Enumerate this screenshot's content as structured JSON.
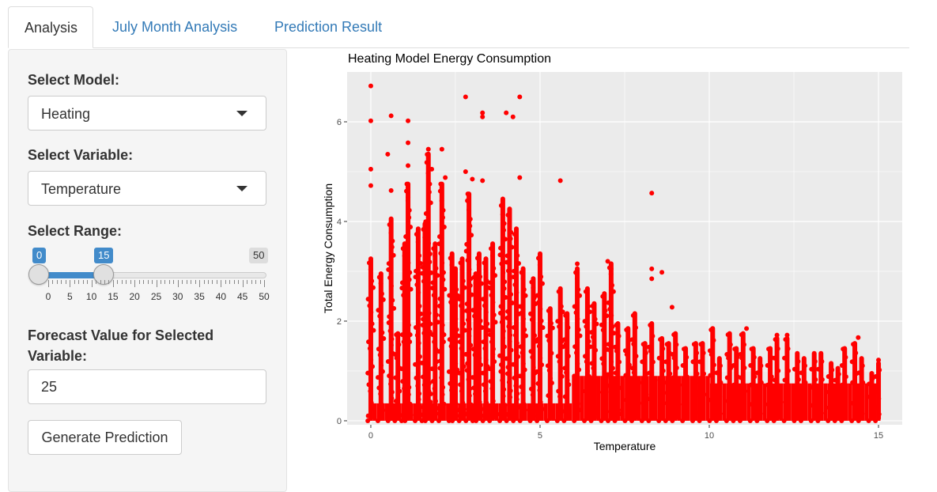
{
  "tabs": [
    {
      "label": "Analysis",
      "active": true
    },
    {
      "label": "July Month Analysis",
      "active": false
    },
    {
      "label": "Prediction Result",
      "active": false
    }
  ],
  "sidebar": {
    "model": {
      "label": "Select Model:",
      "value": "Heating"
    },
    "variable": {
      "label": "Select Variable:",
      "value": "Temperature"
    },
    "range": {
      "label": "Select Range:",
      "min": 0,
      "max": 50,
      "from": 0,
      "to": 15,
      "from_label": "0",
      "to_label": "15",
      "max_label": "50",
      "ticks": [
        "0",
        "5",
        "10",
        "15",
        "20",
        "25",
        "30",
        "35",
        "40",
        "45",
        "50"
      ]
    },
    "forecast": {
      "label": "Forecast Value for Selected Variable:",
      "value": "25"
    },
    "generate_button": "Generate Prediction"
  },
  "chart_data": {
    "type": "scatter",
    "title": "Heating Model Energy Consumption",
    "xlabel": "Temperature",
    "ylabel": "Total Energy Consumption",
    "xlim": [
      -0.7,
      15.7
    ],
    "ylim": [
      -0.08,
      7.0
    ],
    "x_ticks": [
      "0",
      "5",
      "10",
      "15"
    ],
    "y_ticks": [
      "0",
      "2",
      "4",
      "6"
    ],
    "point_color": "#ff0000",
    "panel_color": "#ebebeb",
    "grid": true,
    "series": [
      {
        "points": [
          [
            0.0,
            6.72
          ],
          [
            0.0,
            6.02
          ],
          [
            0.0,
            5.05
          ],
          [
            0.0,
            4.72
          ],
          [
            0.6,
            6.12
          ],
          [
            0.5,
            5.35
          ],
          [
            0.6,
            4.62
          ],
          [
            1.1,
            6.02
          ],
          [
            1.1,
            5.58
          ],
          [
            1.1,
            5.12
          ],
          [
            1.1,
            4.48
          ],
          [
            1.7,
            5.45
          ],
          [
            1.8,
            5.05
          ],
          [
            2.1,
            5.45
          ],
          [
            2.2,
            4.88
          ],
          [
            2.8,
            6.5
          ],
          [
            2.8,
            5.0
          ],
          [
            3.0,
            4.85
          ],
          [
            3.3,
            6.18
          ],
          [
            3.3,
            6.1
          ],
          [
            3.3,
            4.82
          ],
          [
            4.0,
            6.18
          ],
          [
            4.2,
            6.1
          ],
          [
            4.4,
            6.5
          ],
          [
            4.4,
            4.88
          ],
          [
            5.6,
            4.82
          ],
          [
            8.3,
            4.57
          ],
          [
            8.3,
            3.05
          ],
          [
            8.3,
            2.85
          ],
          [
            8.6,
            2.98
          ],
          [
            8.9,
            2.28
          ],
          [
            7.0,
            3.2
          ],
          [
            7.1,
            3.05
          ],
          [
            6.1,
            3.15
          ],
          [
            12.0,
            1.72
          ],
          [
            12.3,
            1.72
          ],
          [
            11.1,
            1.85
          ],
          [
            14.4,
            1.67
          ],
          [
            15.0,
            1.22
          ]
        ]
      }
    ],
    "dense_columns": [
      [
        0.0,
        3.3
      ],
      [
        0.3,
        3.0
      ],
      [
        0.6,
        4.1
      ],
      [
        0.8,
        1.8
      ],
      [
        1.0,
        3.6
      ],
      [
        1.1,
        4.8
      ],
      [
        1.4,
        3.9
      ],
      [
        1.6,
        4.0
      ],
      [
        1.7,
        5.4
      ],
      [
        1.9,
        3.6
      ],
      [
        2.1,
        4.8
      ],
      [
        2.4,
        3.4
      ],
      [
        2.5,
        3.1
      ],
      [
        2.7,
        3.3
      ],
      [
        2.9,
        4.6
      ],
      [
        3.1,
        3.0
      ],
      [
        3.2,
        3.4
      ],
      [
        3.4,
        3.3
      ],
      [
        3.6,
        3.6
      ],
      [
        3.9,
        4.5
      ],
      [
        4.1,
        4.3
      ],
      [
        4.3,
        3.9
      ],
      [
        4.5,
        3.1
      ],
      [
        4.8,
        2.9
      ],
      [
        5.0,
        3.4
      ],
      [
        5.3,
        2.3
      ],
      [
        5.6,
        2.7
      ],
      [
        5.8,
        2.2
      ],
      [
        6.1,
        3.1
      ],
      [
        6.4,
        2.7
      ],
      [
        6.6,
        2.4
      ],
      [
        6.9,
        2.6
      ],
      [
        7.1,
        3.2
      ],
      [
        7.3,
        2.0
      ],
      [
        7.6,
        1.9
      ],
      [
        7.8,
        2.2
      ],
      [
        8.1,
        1.6
      ],
      [
        8.3,
        2.0
      ],
      [
        8.6,
        1.7
      ],
      [
        8.8,
        1.6
      ],
      [
        9.0,
        1.8
      ],
      [
        9.3,
        1.5
      ],
      [
        9.6,
        1.6
      ],
      [
        9.8,
        1.6
      ],
      [
        10.1,
        1.9
      ],
      [
        10.3,
        1.3
      ],
      [
        10.6,
        1.8
      ],
      [
        10.8,
        1.5
      ],
      [
        11.0,
        1.8
      ],
      [
        11.3,
        1.5
      ],
      [
        11.5,
        1.3
      ],
      [
        11.8,
        1.5
      ],
      [
        12.0,
        1.7
      ],
      [
        12.3,
        1.7
      ],
      [
        12.6,
        1.4
      ],
      [
        12.8,
        1.3
      ],
      [
        13.1,
        1.4
      ],
      [
        13.3,
        1.4
      ],
      [
        13.6,
        1.2
      ],
      [
        13.8,
        1.1
      ],
      [
        14.0,
        1.5
      ],
      [
        14.3,
        1.6
      ],
      [
        14.5,
        1.3
      ],
      [
        14.8,
        1.0
      ],
      [
        15.0,
        1.2
      ]
    ]
  }
}
